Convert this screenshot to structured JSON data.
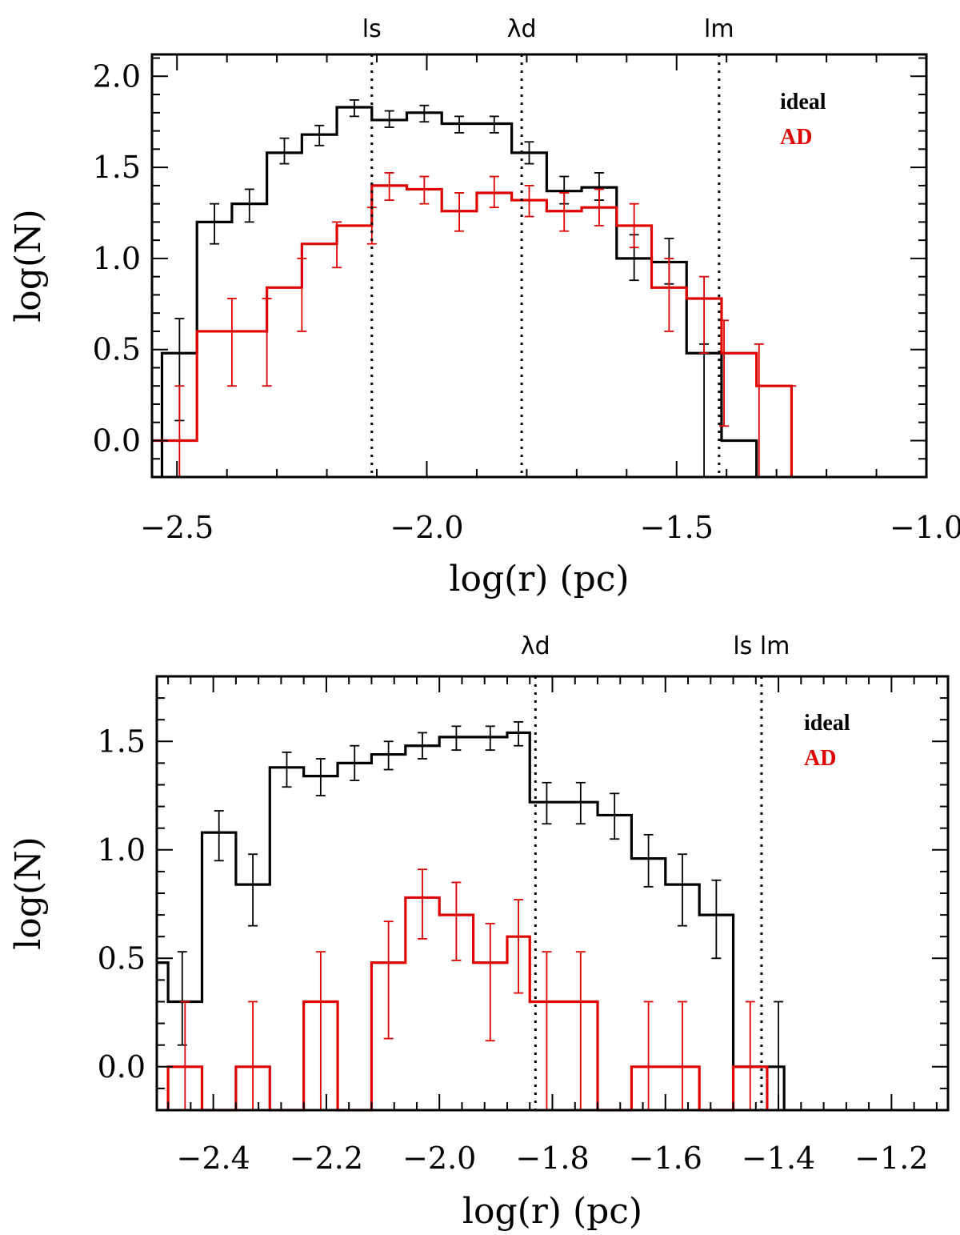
{
  "chart_data": [
    {
      "type": "histogram",
      "xlabel": "log(r) (pc)",
      "ylabel": "log(N)",
      "xlim": [
        -2.55,
        -1.0
      ],
      "ylim": [
        -0.2,
        2.12
      ],
      "xticks": [
        -2.5,
        -2.0,
        -1.5,
        -1.0
      ],
      "xtick_labels": [
        "−2.5",
        "−2.0",
        "−1.5",
        "−1.0"
      ],
      "yticks": [
        0.0,
        0.5,
        1.0,
        1.5,
        2.0
      ],
      "ytick_labels": [
        "0.0",
        "0.5",
        "1.0",
        "1.5",
        "2.0"
      ],
      "vlines": [
        {
          "label": "ls",
          "x": -2.11
        },
        {
          "label": "λd",
          "x": -1.81
        },
        {
          "label": "lm",
          "x": -1.415
        }
      ],
      "legend": [
        {
          "label": "ideal",
          "color": "#000000"
        },
        {
          "label": "AD",
          "color": "#e00000"
        }
      ],
      "series": [
        {
          "name": "ideal",
          "color": "#000000",
          "edges": [
            -2.53,
            -2.46,
            -2.39,
            -2.32,
            -2.25,
            -2.18,
            -2.11,
            -2.04,
            -1.97,
            -1.9,
            -1.83,
            -1.76,
            -1.69,
            -1.62,
            -1.55,
            -1.48,
            -1.41,
            -1.34
          ],
          "values": [
            0.48,
            1.2,
            1.3,
            1.58,
            1.68,
            1.83,
            1.76,
            1.8,
            1.74,
            1.74,
            1.58,
            1.37,
            1.39,
            1.0,
            0.98,
            0.48,
            0.0
          ],
          "errors": [
            {
              "x": -2.495,
              "y": 0.48,
              "lo": 0.11,
              "hi": 0.67
            },
            {
              "x": -2.425,
              "y": 1.2,
              "lo": 1.08,
              "hi": 1.3
            },
            {
              "x": -2.355,
              "y": 1.3,
              "lo": 1.2,
              "hi": 1.38
            },
            {
              "x": -2.285,
              "y": 1.58,
              "lo": 1.52,
              "hi": 1.66
            },
            {
              "x": -2.215,
              "y": 1.68,
              "lo": 1.62,
              "hi": 1.73
            },
            {
              "x": -2.145,
              "y": 1.83,
              "lo": 1.78,
              "hi": 1.87
            },
            {
              "x": -2.075,
              "y": 1.76,
              "lo": 1.72,
              "hi": 1.81
            },
            {
              "x": -2.005,
              "y": 1.8,
              "lo": 1.75,
              "hi": 1.84
            },
            {
              "x": -1.935,
              "y": 1.74,
              "lo": 1.69,
              "hi": 1.78
            },
            {
              "x": -1.865,
              "y": 1.74,
              "lo": 1.69,
              "hi": 1.78
            },
            {
              "x": -1.795,
              "y": 1.58,
              "lo": 1.52,
              "hi": 1.64
            },
            {
              "x": -1.725,
              "y": 1.37,
              "lo": 1.3,
              "hi": 1.45
            },
            {
              "x": -1.655,
              "y": 1.39,
              "lo": 1.32,
              "hi": 1.47
            },
            {
              "x": -1.585,
              "y": 1.0,
              "lo": 0.88,
              "hi": 1.13
            },
            {
              "x": -1.515,
              "y": 0.98,
              "lo": 0.86,
              "hi": 1.11
            },
            {
              "x": -1.445,
              "y": 0.48,
              "lo": -0.2,
              "hi": 0.53
            }
          ]
        },
        {
          "name": "AD",
          "color": "#e00000",
          "edges": [
            -2.56,
            -2.46,
            -2.32,
            -2.25,
            -2.18,
            -2.11,
            -2.04,
            -1.97,
            -1.9,
            -1.83,
            -1.76,
            -1.69,
            -1.62,
            -1.55,
            -1.48,
            -1.41,
            -1.34,
            -1.27
          ],
          "values": [
            0.0,
            0.6,
            0.84,
            1.08,
            1.18,
            1.4,
            1.38,
            1.26,
            1.36,
            1.32,
            1.26,
            1.28,
            1.18,
            0.84,
            0.78,
            0.48,
            0.3
          ],
          "errors": [
            {
              "x": -2.495,
              "y": 0.0,
              "lo": -0.2,
              "hi": 0.3
            },
            {
              "x": -2.39,
              "y": 0.6,
              "lo": 0.3,
              "hi": 0.78
            },
            {
              "x": -2.32,
              "y": 0.6,
              "lo": 0.3,
              "hi": 0.78
            },
            {
              "x": -2.25,
              "y": 0.84,
              "lo": 0.6,
              "hi": 1.0
            },
            {
              "x": -2.18,
              "y": 1.08,
              "lo": 0.95,
              "hi": 1.2
            },
            {
              "x": -2.11,
              "y": 1.18,
              "lo": 1.08,
              "hi": 1.28
            },
            {
              "x": -2.075,
              "y": 1.4,
              "lo": 1.32,
              "hi": 1.47
            },
            {
              "x": -2.005,
              "y": 1.38,
              "lo": 1.3,
              "hi": 1.45
            },
            {
              "x": -1.935,
              "y": 1.26,
              "lo": 1.15,
              "hi": 1.36
            },
            {
              "x": -1.865,
              "y": 1.36,
              "lo": 1.28,
              "hi": 1.45
            },
            {
              "x": -1.795,
              "y": 1.32,
              "lo": 1.23,
              "hi": 1.4
            },
            {
              "x": -1.725,
              "y": 1.26,
              "lo": 1.15,
              "hi": 1.36
            },
            {
              "x": -1.655,
              "y": 1.28,
              "lo": 1.18,
              "hi": 1.38
            },
            {
              "x": -1.585,
              "y": 1.18,
              "lo": 1.06,
              "hi": 1.3
            },
            {
              "x": -1.515,
              "y": 0.84,
              "lo": 0.6,
              "hi": 1.0
            },
            {
              "x": -1.445,
              "y": 0.78,
              "lo": 0.48,
              "hi": 0.9
            },
            {
              "x": -1.405,
              "y": 0.48,
              "lo": 0.08,
              "hi": 0.66
            },
            {
              "x": -1.335,
              "y": 0.3,
              "lo": -0.2,
              "hi": 0.53
            },
            {
              "x": -1.27,
              "y": 0.0,
              "lo": -0.2,
              "hi": 0.3
            }
          ]
        }
      ]
    },
    {
      "type": "histogram",
      "xlabel": "log(r) (pc)",
      "ylabel": "log(N)",
      "xlim": [
        -2.5,
        -1.1
      ],
      "ylim": [
        -0.2,
        1.8
      ],
      "xticks": [
        -2.4,
        -2.2,
        -2.0,
        -1.8,
        -1.6,
        -1.4,
        -1.2
      ],
      "xtick_labels": [
        "−2.4",
        "−2.2",
        "−2.0",
        "−1.8",
        "−1.6",
        "−1.4",
        "−1.2"
      ],
      "yticks": [
        0.0,
        0.5,
        1.0,
        1.5
      ],
      "ytick_labels": [
        "0.0",
        "0.5",
        "1.0",
        "1.5"
      ],
      "vlines": [
        {
          "label": "λd",
          "x": -1.83
        },
        {
          "label": "ls lm",
          "x": -1.43
        }
      ],
      "legend": [
        {
          "label": "ideal",
          "color": "#000000"
        },
        {
          "label": "AD",
          "color": "#e00000"
        }
      ],
      "series": [
        {
          "name": "ideal",
          "color": "#000000",
          "edges": [
            -2.51,
            -2.48,
            -2.42,
            -2.36,
            -2.3,
            -2.24,
            -2.18,
            -2.12,
            -2.06,
            -2.0,
            -1.94,
            -1.88,
            -1.84,
            -1.78,
            -1.72,
            -1.66,
            -1.6,
            -1.54,
            -1.48,
            -1.42,
            -1.39
          ],
          "values": [
            0.48,
            0.3,
            1.08,
            0.84,
            1.38,
            1.34,
            1.4,
            1.44,
            1.48,
            1.52,
            1.52,
            1.54,
            1.22,
            1.22,
            1.16,
            0.96,
            0.84,
            0.7,
            0.0,
            0.0
          ],
          "errors": [
            {
              "x": -2.455,
              "y": 0.3,
              "lo": 0.1,
              "hi": 0.53
            },
            {
              "x": -2.39,
              "y": 1.08,
              "lo": 0.95,
              "hi": 1.18
            },
            {
              "x": -2.33,
              "y": 0.84,
              "lo": 0.65,
              "hi": 0.98
            },
            {
              "x": -2.27,
              "y": 1.38,
              "lo": 1.29,
              "hi": 1.45
            },
            {
              "x": -2.21,
              "y": 1.34,
              "lo": 1.25,
              "hi": 1.42
            },
            {
              "x": -2.15,
              "y": 1.4,
              "lo": 1.32,
              "hi": 1.48
            },
            {
              "x": -2.09,
              "y": 1.44,
              "lo": 1.37,
              "hi": 1.5
            },
            {
              "x": -2.03,
              "y": 1.48,
              "lo": 1.42,
              "hi": 1.54
            },
            {
              "x": -1.97,
              "y": 1.52,
              "lo": 1.46,
              "hi": 1.57
            },
            {
              "x": -1.91,
              "y": 1.52,
              "lo": 1.46,
              "hi": 1.57
            },
            {
              "x": -1.86,
              "y": 1.54,
              "lo": 1.48,
              "hi": 1.59
            },
            {
              "x": -1.81,
              "y": 1.22,
              "lo": 1.12,
              "hi": 1.31
            },
            {
              "x": -1.75,
              "y": 1.22,
              "lo": 1.12,
              "hi": 1.31
            },
            {
              "x": -1.69,
              "y": 1.16,
              "lo": 1.05,
              "hi": 1.26
            },
            {
              "x": -1.63,
              "y": 0.96,
              "lo": 0.83,
              "hi": 1.07
            },
            {
              "x": -1.57,
              "y": 0.84,
              "lo": 0.65,
              "hi": 0.98
            },
            {
              "x": -1.51,
              "y": 0.7,
              "lo": 0.5,
              "hi": 0.86
            },
            {
              "x": -1.4,
              "y": 0.0,
              "lo": -0.2,
              "hi": 0.3
            }
          ]
        },
        {
          "name": "AD",
          "color": "#e00000",
          "edges": [
            -2.48,
            -2.42,
            -2.36,
            -2.3,
            -2.24,
            -2.18,
            -2.12,
            -2.06,
            -2.0,
            -1.94,
            -1.88,
            -1.84,
            -1.78,
            -1.72,
            -1.66,
            -1.6,
            -1.54,
            -1.48,
            -1.42
          ],
          "values": [
            0.0,
            -0.2,
            0.0,
            -0.2,
            0.3,
            -0.2,
            0.48,
            0.78,
            0.7,
            0.48,
            0.6,
            0.3,
            0.3,
            -0.2,
            0.0,
            0.0,
            -0.2,
            0.0
          ],
          "errors": [
            {
              "x": -2.45,
              "y": 0.0,
              "lo": -0.2,
              "hi": 0.3
            },
            {
              "x": -2.33,
              "y": 0.0,
              "lo": -0.2,
              "hi": 0.3
            },
            {
              "x": -2.21,
              "y": 0.3,
              "lo": -0.2,
              "hi": 0.53
            },
            {
              "x": -2.09,
              "y": 0.48,
              "lo": 0.13,
              "hi": 0.67
            },
            {
              "x": -2.03,
              "y": 0.78,
              "lo": 0.59,
              "hi": 0.91
            },
            {
              "x": -1.97,
              "y": 0.7,
              "lo": 0.49,
              "hi": 0.85
            },
            {
              "x": -1.91,
              "y": 0.48,
              "lo": 0.12,
              "hi": 0.66
            },
            {
              "x": -1.86,
              "y": 0.6,
              "lo": 0.34,
              "hi": 0.77
            },
            {
              "x": -1.81,
              "y": 0.3,
              "lo": -0.2,
              "hi": 0.53
            },
            {
              "x": -1.75,
              "y": 0.3,
              "lo": -0.2,
              "hi": 0.53
            },
            {
              "x": -1.63,
              "y": 0.0,
              "lo": -0.2,
              "hi": 0.3
            },
            {
              "x": -1.57,
              "y": 0.0,
              "lo": -0.2,
              "hi": 0.3
            },
            {
              "x": -1.45,
              "y": 0.0,
              "lo": -0.2,
              "hi": 0.3
            }
          ]
        }
      ]
    }
  ]
}
